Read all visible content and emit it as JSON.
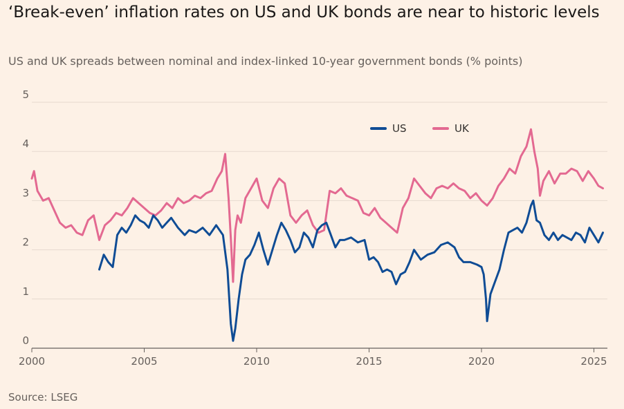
{
  "header": {
    "title": "‘Break-even’ inflation rates on US and UK bonds are near to historic levels",
    "subtitle": "US and UK spreads between nominal and index-linked 10-year government bonds (% points)"
  },
  "footer": {
    "source": "Source: LSEG"
  },
  "colors": {
    "background": "#fdf1e6",
    "grid": "#e6d9cf",
    "axis": "#66605c",
    "us": "#0f4c95",
    "uk": "#e36991"
  },
  "chart_data": {
    "type": "line",
    "title": "‘Break-even’ inflation rates on US and UK bonds are near to historic levels",
    "subtitle": "US and UK spreads between nominal and index-linked 10-year government bonds (% points)",
    "xlabel": "",
    "ylabel": "",
    "xlim": [
      2000,
      2025.6
    ],
    "ylim": [
      0,
      5
    ],
    "x_ticks": [
      2000,
      2005,
      2010,
      2015,
      2020,
      2025
    ],
    "x_tick_labels": [
      "2000",
      "2005",
      "2010",
      "2015",
      "2020",
      "2025"
    ],
    "y_ticks": [
      0,
      1,
      2,
      3,
      4,
      5
    ],
    "y_tick_labels": [
      "0",
      "1",
      "2",
      "3",
      "4",
      "5"
    ],
    "grid": true,
    "legend_position": "top-right",
    "series": [
      {
        "name": "US",
        "color": "#0f4c95",
        "x": [
          2003.0,
          2003.2,
          2003.4,
          2003.6,
          2003.8,
          2004.0,
          2004.2,
          2004.4,
          2004.6,
          2004.8,
          2005.0,
          2005.2,
          2005.4,
          2005.6,
          2005.8,
          2006.0,
          2006.2,
          2006.5,
          2006.8,
          2007.0,
          2007.3,
          2007.6,
          2007.9,
          2008.2,
          2008.5,
          2008.7,
          2008.85,
          2008.95,
          2009.05,
          2009.2,
          2009.35,
          2009.5,
          2009.7,
          2009.9,
          2010.1,
          2010.3,
          2010.5,
          2010.7,
          2010.9,
          2011.1,
          2011.3,
          2011.5,
          2011.7,
          2011.9,
          2012.1,
          2012.3,
          2012.5,
          2012.7,
          2012.9,
          2013.1,
          2013.3,
          2013.5,
          2013.7,
          2013.9,
          2014.2,
          2014.5,
          2014.8,
          2015.0,
          2015.2,
          2015.4,
          2015.6,
          2015.8,
          2016.0,
          2016.2,
          2016.4,
          2016.6,
          2016.8,
          2017.0,
          2017.3,
          2017.6,
          2017.9,
          2018.2,
          2018.5,
          2018.8,
          2019.0,
          2019.2,
          2019.5,
          2019.8,
          2020.0,
          2020.1,
          2020.2,
          2020.25,
          2020.4,
          2020.6,
          2020.8,
          2021.0,
          2021.2,
          2021.4,
          2021.6,
          2021.8,
          2022.0,
          2022.2,
          2022.3,
          2022.45,
          2022.6,
          2022.8,
          2023.0,
          2023.2,
          2023.4,
          2023.6,
          2023.8,
          2024.0,
          2024.2,
          2024.4,
          2024.6,
          2024.8,
          2025.0,
          2025.2,
          2025.4
        ],
        "values": [
          1.6,
          1.9,
          1.75,
          1.65,
          2.3,
          2.45,
          2.35,
          2.5,
          2.7,
          2.6,
          2.55,
          2.45,
          2.7,
          2.6,
          2.45,
          2.55,
          2.65,
          2.45,
          2.3,
          2.4,
          2.35,
          2.45,
          2.3,
          2.5,
          2.3,
          1.6,
          0.5,
          0.15,
          0.4,
          1.0,
          1.5,
          1.8,
          1.9,
          2.1,
          2.35,
          2.0,
          1.7,
          2.0,
          2.3,
          2.55,
          2.4,
          2.2,
          1.95,
          2.05,
          2.35,
          2.25,
          2.05,
          2.4,
          2.5,
          2.55,
          2.3,
          2.05,
          2.2,
          2.2,
          2.25,
          2.15,
          2.2,
          1.8,
          1.85,
          1.75,
          1.55,
          1.6,
          1.55,
          1.3,
          1.5,
          1.55,
          1.75,
          2.0,
          1.8,
          1.9,
          1.95,
          2.1,
          2.15,
          2.05,
          1.85,
          1.75,
          1.75,
          1.7,
          1.65,
          1.5,
          1.0,
          0.55,
          1.1,
          1.35,
          1.6,
          2.0,
          2.35,
          2.4,
          2.45,
          2.35,
          2.55,
          2.9,
          3.0,
          2.6,
          2.55,
          2.3,
          2.2,
          2.35,
          2.2,
          2.3,
          2.25,
          2.2,
          2.35,
          2.3,
          2.15,
          2.45,
          2.3,
          2.15,
          2.35
        ]
      },
      {
        "name": "UK",
        "color": "#e36991",
        "x": [
          2000.0,
          2000.1,
          2000.25,
          2000.5,
          2000.75,
          2001.0,
          2001.25,
          2001.5,
          2001.75,
          2002.0,
          2002.25,
          2002.5,
          2002.75,
          2003.0,
          2003.25,
          2003.5,
          2003.75,
          2004.0,
          2004.25,
          2004.5,
          2004.75,
          2005.0,
          2005.25,
          2005.5,
          2005.75,
          2006.0,
          2006.25,
          2006.5,
          2006.75,
          2007.0,
          2007.25,
          2007.5,
          2007.75,
          2008.0,
          2008.25,
          2008.45,
          2008.6,
          2008.75,
          2008.85,
          2008.95,
          2009.05,
          2009.15,
          2009.3,
          2009.5,
          2009.75,
          2010.0,
          2010.25,
          2010.5,
          2010.75,
          2011.0,
          2011.25,
          2011.5,
          2011.75,
          2012.0,
          2012.25,
          2012.5,
          2012.75,
          2013.0,
          2013.25,
          2013.5,
          2013.75,
          2014.0,
          2014.25,
          2014.5,
          2014.75,
          2015.0,
          2015.25,
          2015.5,
          2015.75,
          2016.0,
          2016.25,
          2016.5,
          2016.75,
          2017.0,
          2017.25,
          2017.5,
          2017.75,
          2018.0,
          2018.25,
          2018.5,
          2018.75,
          2019.0,
          2019.25,
          2019.5,
          2019.75,
          2020.0,
          2020.25,
          2020.5,
          2020.75,
          2021.0,
          2021.25,
          2021.5,
          2021.75,
          2022.0,
          2022.2,
          2022.35,
          2022.5,
          2022.6,
          2022.75,
          2023.0,
          2023.25,
          2023.5,
          2023.75,
          2024.0,
          2024.25,
          2024.5,
          2024.75,
          2025.0,
          2025.2,
          2025.4
        ],
        "values": [
          3.45,
          3.6,
          3.2,
          3.0,
          3.05,
          2.8,
          2.55,
          2.45,
          2.5,
          2.35,
          2.3,
          2.6,
          2.7,
          2.2,
          2.5,
          2.6,
          2.75,
          2.7,
          2.85,
          3.05,
          2.95,
          2.85,
          2.75,
          2.7,
          2.8,
          2.95,
          2.85,
          3.05,
          2.95,
          3.0,
          3.1,
          3.05,
          3.15,
          3.2,
          3.45,
          3.6,
          3.95,
          3.05,
          2.25,
          1.35,
          2.4,
          2.7,
          2.55,
          3.05,
          3.25,
          3.45,
          3.0,
          2.85,
          3.25,
          3.45,
          3.35,
          2.7,
          2.55,
          2.7,
          2.8,
          2.5,
          2.35,
          2.4,
          3.2,
          3.15,
          3.25,
          3.1,
          3.05,
          3.0,
          2.75,
          2.7,
          2.85,
          2.65,
          2.55,
          2.45,
          2.35,
          2.85,
          3.05,
          3.45,
          3.3,
          3.15,
          3.05,
          3.25,
          3.3,
          3.25,
          3.35,
          3.25,
          3.2,
          3.05,
          3.15,
          3.0,
          2.9,
          3.05,
          3.3,
          3.45,
          3.65,
          3.55,
          3.9,
          4.1,
          4.45,
          4.0,
          3.65,
          3.1,
          3.4,
          3.6,
          3.35,
          3.55,
          3.55,
          3.65,
          3.6,
          3.4,
          3.6,
          3.45,
          3.3,
          3.25
        ]
      }
    ]
  }
}
